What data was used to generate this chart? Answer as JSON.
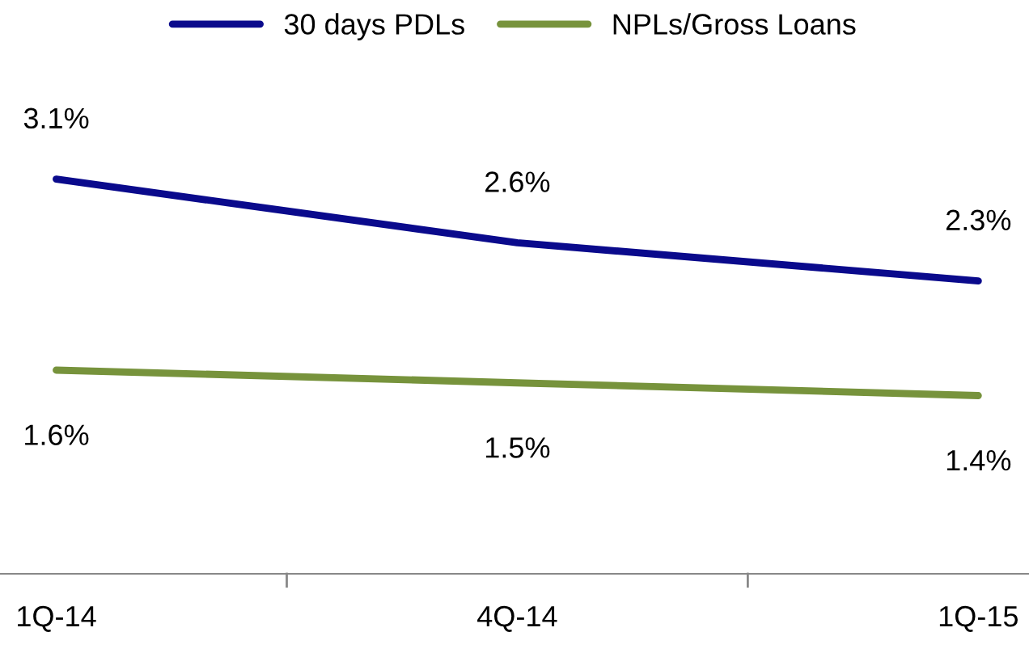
{
  "chart_data": {
    "type": "line",
    "categories": [
      "1Q-14",
      "4Q-14",
      "1Q-15"
    ],
    "series": [
      {
        "name": "30 days PDLs",
        "color": "#0a0a8c",
        "values": [
          3.1,
          2.6,
          2.3
        ],
        "value_labels": [
          "3.1%",
          "2.6%",
          "2.3%"
        ]
      },
      {
        "name": "NPLs/Gross Loans",
        "color": "#77933c",
        "values": [
          1.6,
          1.5,
          1.4
        ],
        "value_labels": [
          "1.6%",
          "1.5%",
          "1.4%"
        ]
      }
    ],
    "legend": "top",
    "grid": false,
    "marker": "none",
    "line_style": "solid",
    "tick_labels": "x"
  }
}
